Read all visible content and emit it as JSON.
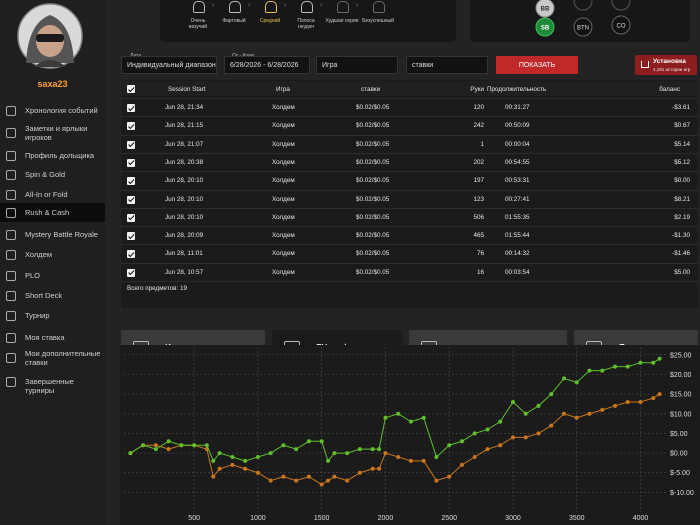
{
  "sidebar": {
    "username": "saxa23",
    "menu": [
      "Хронология событий",
      "Заметки и ярлыки игроков",
      "Профиль дольщика",
      "Spin & Gold",
      "All-In or Fold",
      "Rush & Cash",
      "Mystery Battle Royale",
      "Холдем",
      "PLO",
      "Short Deck",
      "Турнир",
      "Моя ставка",
      "Мои дополнительные ставки",
      "Завершенные турниры"
    ]
  },
  "luck_bar": {
    "levels": [
      "Очень везучий",
      "Фартовый",
      "Средний",
      "Полоса неудач",
      "Худшая серия",
      "Безуспешный"
    ]
  },
  "positions": [
    "BB",
    "SB",
    "BTN",
    "CO"
  ],
  "filters": {
    "date_label": "Дата",
    "date_range_type": "Индивидуальный диапазон",
    "from_to_label": "От - Кому",
    "date_range": "6/28/2026 - 6/28/2026",
    "game": "Игра",
    "stakes": "ставки",
    "show_button": "ПОКАЗАТЬ",
    "install_button": "Установка",
    "install_note": "4,191 истории игр"
  },
  "table": {
    "columns": [
      "Session Start",
      "Игра",
      "ставки",
      "Руки",
      "Продолжительность",
      "баланс"
    ],
    "rows": [
      [
        "Jun 28, 21:34",
        "Холдем",
        "$0.02/$0.05",
        "120",
        "00:31:27",
        "-$3.61"
      ],
      [
        "Jun 28, 21:15",
        "Холдем",
        "$0.02/$0.05",
        "242",
        "00:50:09",
        "$0.67"
      ],
      [
        "Jun 28, 21:07",
        "Холдем",
        "$0.02/$0.05",
        "1",
        "00:00:04",
        "$5.14"
      ],
      [
        "Jun 28, 20:38",
        "Холдем",
        "$0.02/$0.05",
        "202",
        "00:54:55",
        "$5.12"
      ],
      [
        "Jun 28, 20:10",
        "Холдем",
        "$0.02/$0.05",
        "197",
        "00:53:31",
        "$0.00"
      ],
      [
        "Jun 28, 20:10",
        "Холдем",
        "$0.02/$0.05",
        "123",
        "00:27:41",
        "$8.21"
      ],
      [
        "Jun 28, 20:10",
        "Холдем",
        "$0.02/$0.05",
        "506",
        "01:55:35",
        "$2.19"
      ],
      [
        "Jun 28, 20:09",
        "Холдем",
        "$0.02/$0.05",
        "465",
        "01:55:44",
        "-$1.30"
      ],
      [
        "Jun 28, 11:01",
        "Холдем",
        "$0.02/$0.05",
        "76",
        "00:14:32",
        "-$1.46"
      ],
      [
        "Jun 28, 10:57",
        "Холдем",
        "$0.02/$0.05",
        "16",
        "00:03:54",
        "$5.00"
      ]
    ],
    "total": "Всего предметов: 19"
  },
  "tabs": [
    "История игры",
    "EV график",
    "карманные карты",
    "Позиция"
  ],
  "chart_data": {
    "type": "line",
    "x": [
      0,
      100,
      200,
      300,
      400,
      500,
      600,
      650,
      700,
      800,
      900,
      1000,
      1100,
      1200,
      1300,
      1400,
      1500,
      1550,
      1600,
      1700,
      1800,
      1900,
      1950,
      2000,
      2100,
      2200,
      2300,
      2400,
      2500,
      2600,
      2700,
      2800,
      2900,
      3000,
      3100,
      3200,
      3300,
      3400,
      3500,
      3600,
      3700,
      3800,
      3900,
      4000,
      4100,
      4150
    ],
    "series": [
      {
        "color": "#5fbf2c",
        "values": [
          0,
          2,
          1,
          3,
          2,
          2,
          2,
          -2,
          0,
          -1,
          -2,
          -1,
          0,
          2,
          1,
          3,
          3,
          -2,
          0,
          0,
          1,
          1,
          1,
          9,
          10,
          8,
          9,
          -1,
          2,
          3,
          5,
          6,
          8,
          13,
          10,
          12,
          15,
          19,
          18,
          21,
          21,
          22,
          22,
          23,
          23,
          24
        ]
      },
      {
        "color": "#c9761c",
        "values": [
          0,
          2,
          2,
          1,
          2,
          2,
          1,
          -6,
          -4,
          -3,
          -4,
          -5,
          -7,
          -6,
          -7,
          -6,
          -8,
          -7,
          -6,
          -7,
          -5,
          -4,
          -4,
          0,
          -1,
          -2,
          -2,
          -7,
          -6,
          -3,
          -1,
          1,
          2,
          4,
          4,
          5,
          7,
          10,
          9,
          10,
          11,
          12,
          13,
          13,
          14,
          15
        ]
      }
    ],
    "xlim": [
      -50,
      4200
    ],
    "ylim": [
      -15,
      27
    ],
    "xticks": [
      500,
      1000,
      1500,
      2000,
      2500,
      3000,
      3500,
      4000
    ],
    "yticks": [
      {
        "value": -10,
        "label": "$-10.00"
      },
      {
        "value": -5,
        "label": "$-5.00"
      },
      {
        "value": 0,
        "label": "$0.00"
      },
      {
        "value": 5,
        "label": "$5.00"
      },
      {
        "value": 10,
        "label": "$10.00"
      },
      {
        "value": 15,
        "label": "$15.00"
      },
      {
        "value": 20,
        "label": "$20.00"
      },
      {
        "value": 25,
        "label": "$25.00"
      }
    ],
    "grid": true
  }
}
